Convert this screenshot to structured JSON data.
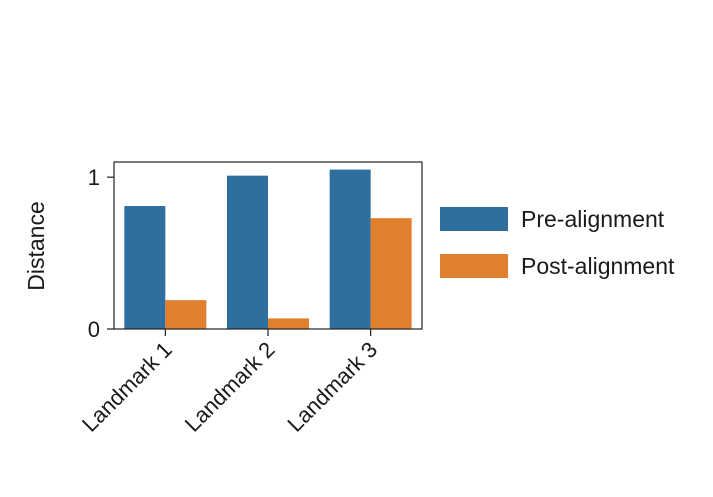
{
  "chart_data": {
    "type": "bar",
    "categories": [
      "Landmark 1",
      "Landmark 2",
      "Landmark 3"
    ],
    "series": [
      {
        "name": "Pre-alignment",
        "color": "#2f6f9f",
        "values": [
          0.81,
          1.01,
          1.05
        ]
      },
      {
        "name": "Post-alignment",
        "color": "#e07f2e",
        "values": [
          0.19,
          0.07,
          0.73
        ]
      }
    ],
    "title": "",
    "xlabel": "",
    "ylabel": "Distance",
    "ylim": [
      0,
      1.1
    ],
    "yticks": [
      0,
      1
    ],
    "ytick_labels": [
      "0",
      "1"
    ],
    "legend_position": "right",
    "grid": false
  }
}
